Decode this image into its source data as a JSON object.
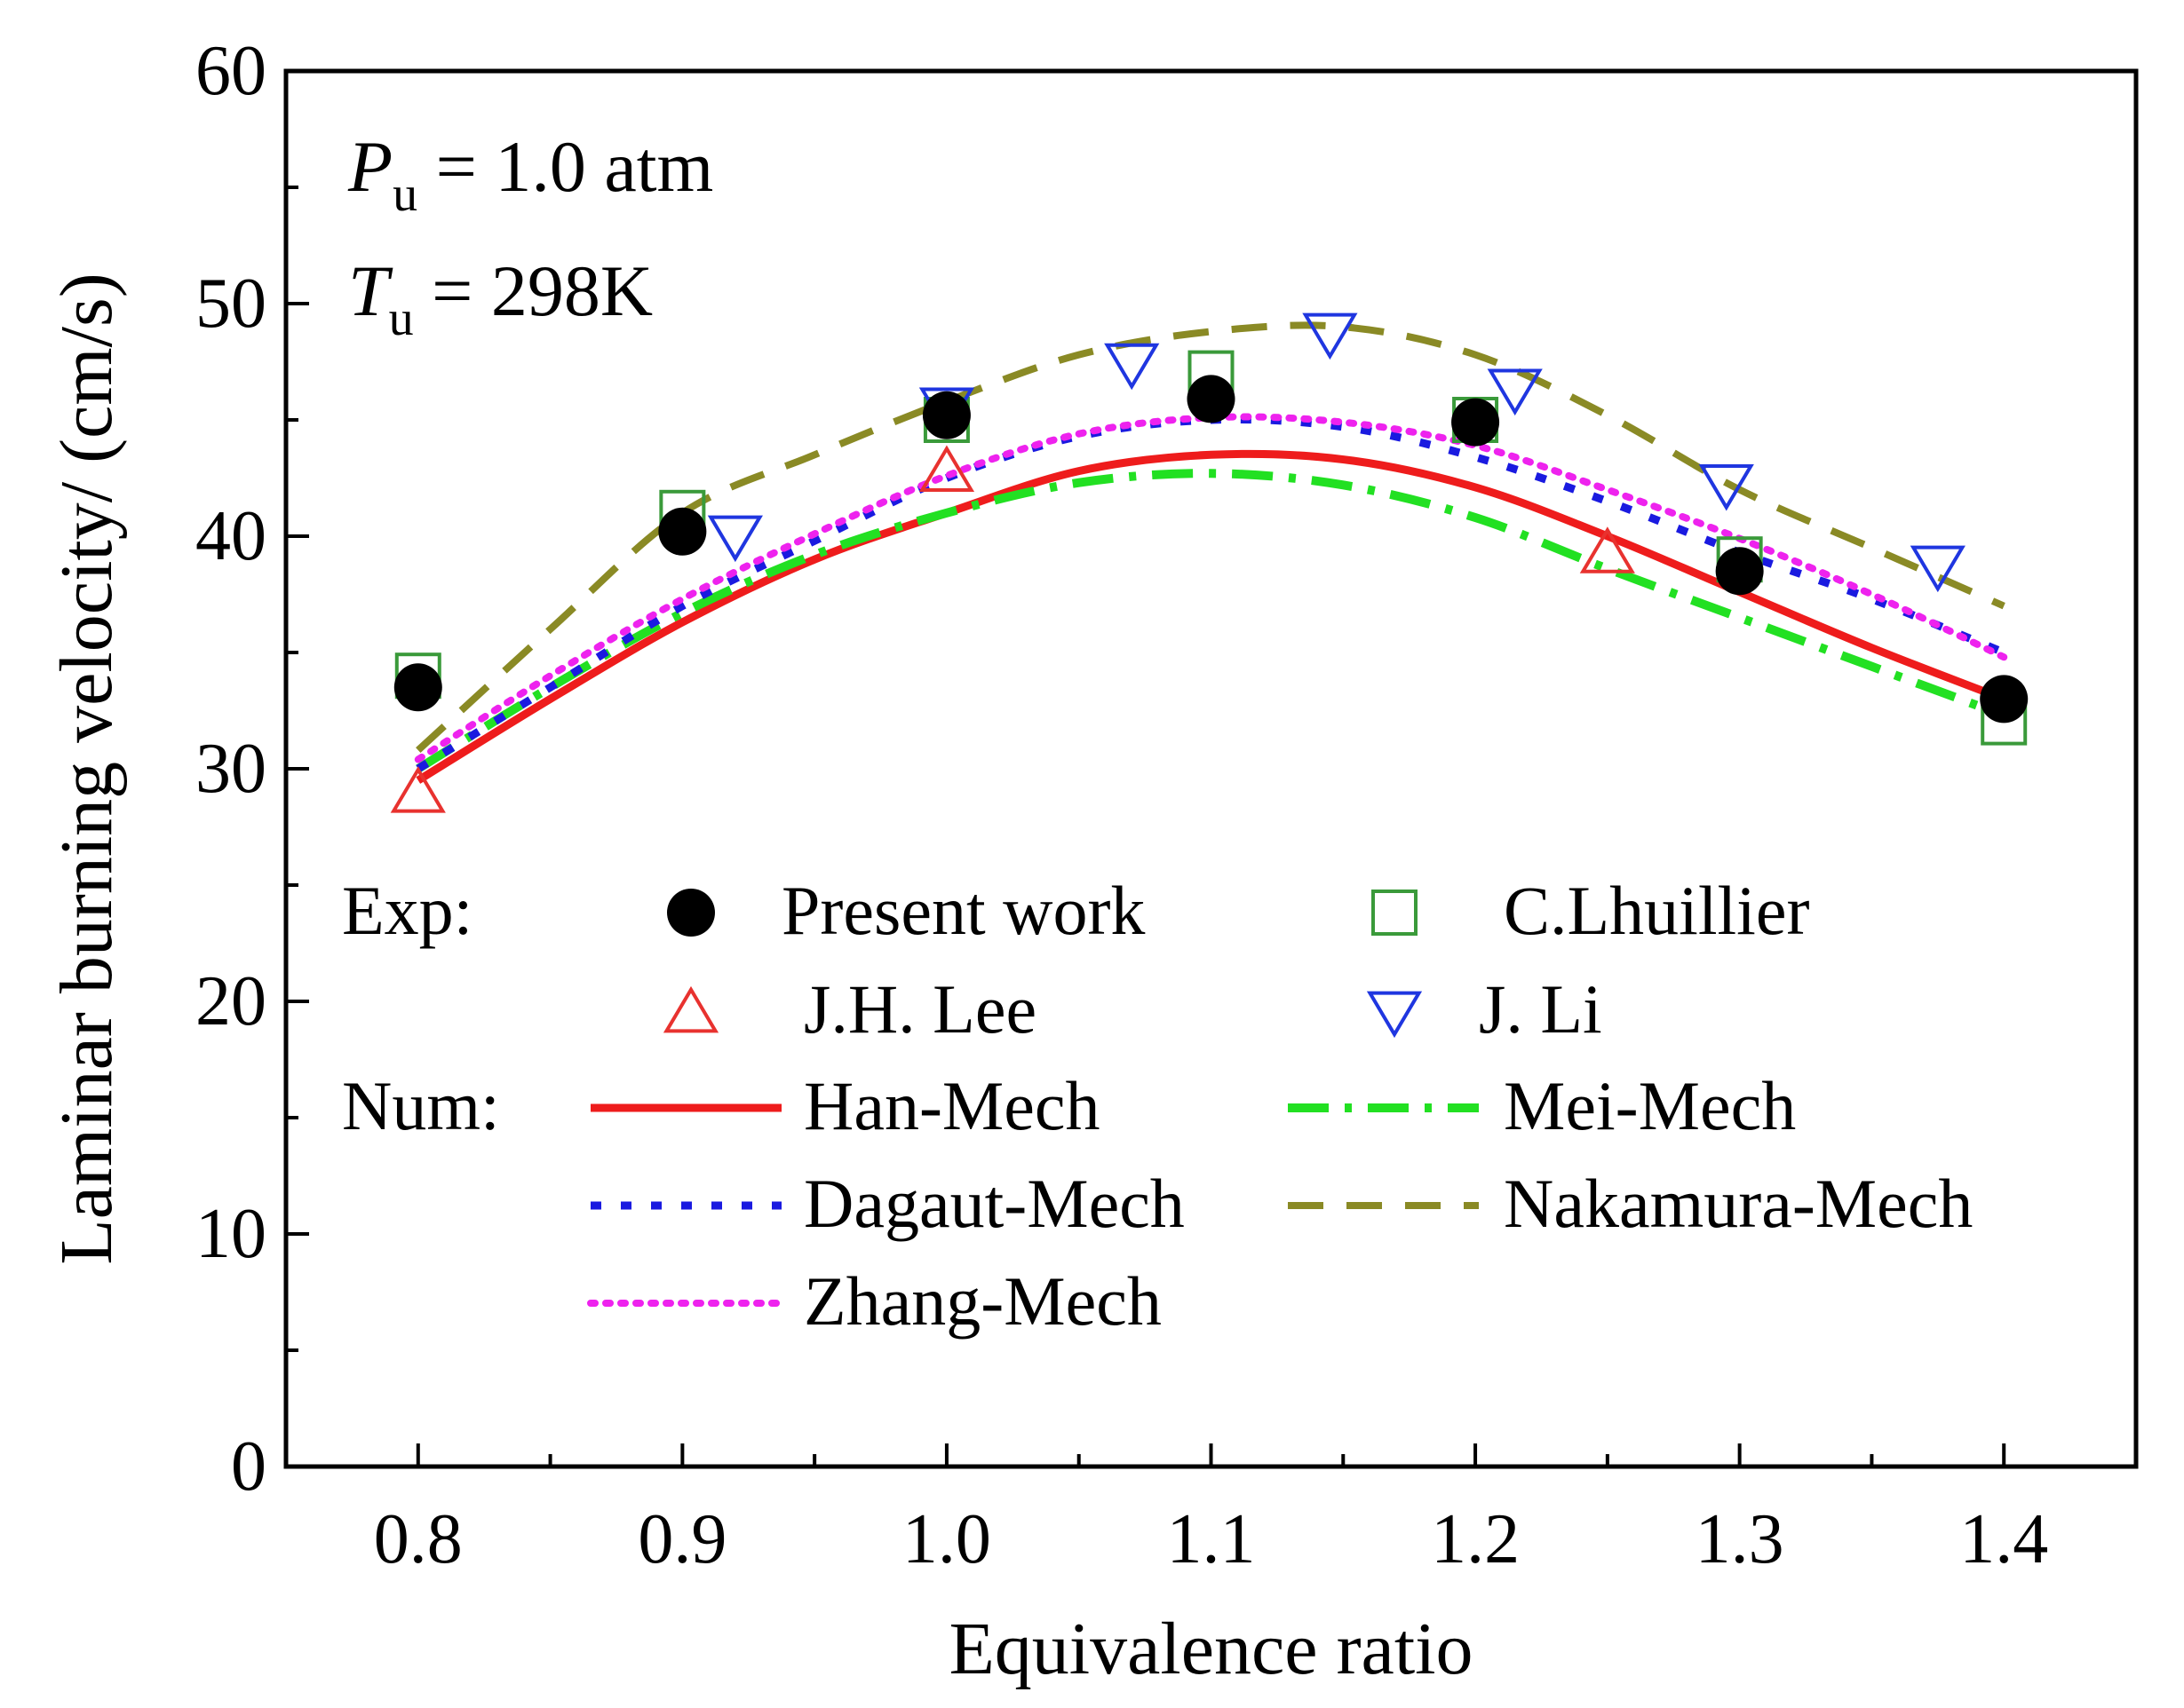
{
  "chart_data": {
    "type": "line",
    "xlabel": "Equivalence ratio",
    "ylabel": "Laminar burning velocity/ (cm/s)",
    "xlim": [
      0.75,
      1.45
    ],
    "ylim": [
      0,
      60
    ],
    "xticks": [
      "0.8",
      "0.9",
      "1.0",
      "1.1",
      "1.2",
      "1.3",
      "1.4"
    ],
    "yticks": [
      "0",
      "10",
      "20",
      "30",
      "40",
      "50",
      "60"
    ],
    "conditions": [
      {
        "symbol": "P",
        "sub": "u",
        "value": " = 1.0 atm"
      },
      {
        "symbol": "T",
        "sub": "u",
        "value": " = 298K"
      }
    ],
    "legend": {
      "exp_label": "Exp:",
      "num_label": "Num:"
    },
    "experimental": [
      {
        "name": "Present work",
        "marker": "filled-circle",
        "color": "#000000",
        "x": [
          0.8,
          0.9,
          1.0,
          1.1,
          1.2,
          1.3,
          1.4
        ],
        "y": [
          33.5,
          40.2,
          45.2,
          45.9,
          44.9,
          38.5,
          33.0
        ]
      },
      {
        "name": "C.Lhuillier",
        "marker": "open-square",
        "color": "#3a9a3a",
        "x": [
          0.8,
          0.9,
          1.0,
          1.1,
          1.2,
          1.3,
          1.4
        ],
        "y": [
          34.0,
          41.0,
          45.0,
          47.0,
          45.0,
          39.0,
          32.0
        ]
      },
      {
        "name": "J.H. Lee",
        "marker": "open-triangle-up",
        "color": "#e8322f",
        "x": [
          0.8,
          1.0,
          1.25
        ],
        "y": [
          29.0,
          42.8,
          39.3
        ]
      },
      {
        "name": "J. Li",
        "marker": "open-triangle-down",
        "color": "#1f36e0",
        "x": [
          0.92,
          1.0,
          1.07,
          1.145,
          1.215,
          1.295,
          1.375
        ],
        "y": [
          40.0,
          45.5,
          47.4,
          48.7,
          46.3,
          42.2,
          38.7
        ]
      }
    ],
    "numerical": [
      {
        "name": "Han-Mech",
        "style": "solid",
        "color": "#ee1c1c",
        "x": [
          0.8,
          0.85,
          0.9,
          0.95,
          1.0,
          1.05,
          1.1,
          1.15,
          1.2,
          1.25,
          1.3,
          1.35,
          1.4
        ],
        "y": [
          29.5,
          33.0,
          36.3,
          39.0,
          41.0,
          42.8,
          43.5,
          43.3,
          42.1,
          40.0,
          37.6,
          35.2,
          33.0
        ]
      },
      {
        "name": "Mei-Mech",
        "style": "dashdot",
        "color": "#22e022",
        "x": [
          0.8,
          0.85,
          0.9,
          0.95,
          1.0,
          1.05,
          1.1,
          1.15,
          1.2,
          1.25,
          1.3,
          1.35,
          1.4
        ],
        "y": [
          30.0,
          33.5,
          36.7,
          39.2,
          41.0,
          42.3,
          42.7,
          42.2,
          40.8,
          38.6,
          36.5,
          34.4,
          32.3
        ]
      },
      {
        "name": "Dagaut-Mech",
        "style": "dashed-short",
        "color": "#1a1ae0",
        "x": [
          0.8,
          0.85,
          0.9,
          0.95,
          1.0,
          1.05,
          1.1,
          1.15,
          1.2,
          1.25,
          1.3,
          1.35,
          1.4
        ],
        "y": [
          30.0,
          33.5,
          37.0,
          39.8,
          42.5,
          44.3,
          45.0,
          44.7,
          43.4,
          41.5,
          39.3,
          37.3,
          35.0
        ]
      },
      {
        "name": "Nakamura-Mech",
        "style": "dashed-long",
        "color": "#8a8a25",
        "x": [
          0.8,
          0.85,
          0.9,
          0.95,
          1.0,
          1.05,
          1.1,
          1.15,
          1.2,
          1.25,
          1.3,
          1.35,
          1.4
        ],
        "y": [
          30.8,
          36.0,
          41.0,
          43.5,
          45.8,
          47.8,
          48.8,
          49.0,
          47.8,
          45.2,
          42.0,
          39.5,
          37.0
        ]
      },
      {
        "name": "Zhang-Mech",
        "style": "dotted",
        "color": "#ee22ee",
        "x": [
          0.8,
          0.85,
          0.9,
          0.95,
          1.0,
          1.05,
          1.1,
          1.15,
          1.2,
          1.25,
          1.3,
          1.35,
          1.4
        ],
        "y": [
          30.4,
          34.0,
          37.3,
          40.1,
          42.6,
          44.4,
          45.1,
          44.9,
          43.9,
          42.0,
          39.9,
          37.5,
          34.8
        ]
      }
    ]
  }
}
